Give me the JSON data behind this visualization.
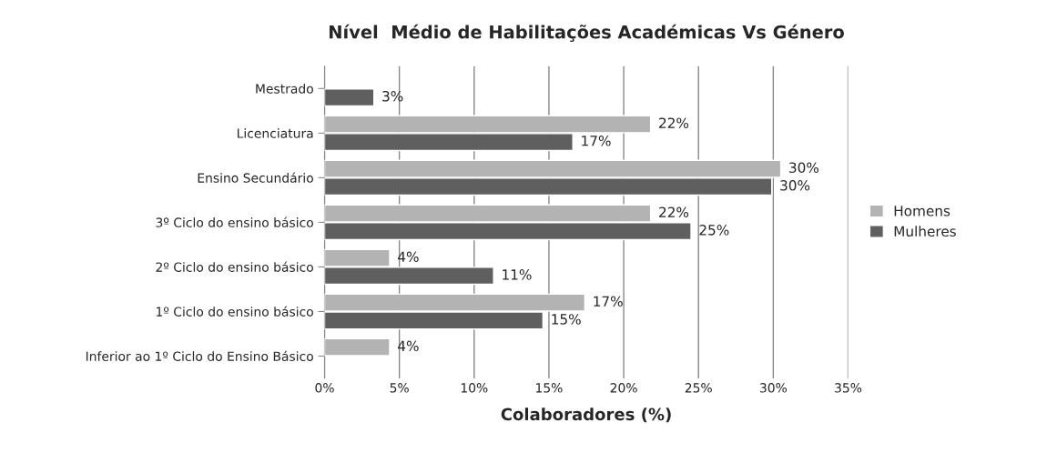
{
  "chart_data": {
    "type": "bar",
    "orientation": "horizontal",
    "title": "Nível  Médio de Habilitações Académicas Vs Género",
    "xlabel": "Colaboradores (%)",
    "categories": [
      "Mestrado",
      "Licenciatura",
      "Ensino Secundário",
      "3º Ciclo do ensino básico",
      "2º Ciclo do ensino básico",
      "1º Ciclo do ensino básico",
      "Inferior ao 1º Ciclo do Ensino Básico"
    ],
    "series": [
      {
        "name": "Homens",
        "color": "#b3b3b3",
        "values": [
          null,
          21.8,
          30.5,
          21.8,
          4.35,
          17.4,
          4.35
        ],
        "value_labels": [
          null,
          "22%",
          "30%",
          "22%",
          "4%",
          "17%",
          "4%"
        ]
      },
      {
        "name": "Mulheres",
        "color": "#5f5f5f",
        "values": [
          3.3,
          16.6,
          29.9,
          24.5,
          11.3,
          14.6,
          null
        ],
        "value_labels": [
          "3%",
          "17%",
          "30%",
          "25%",
          "11%",
          "15%",
          null
        ]
      }
    ],
    "xlim": [
      0,
      35
    ],
    "xticks": [
      {
        "value": 0,
        "label": "0%"
      },
      {
        "value": 5,
        "label": "5%"
      },
      {
        "value": 10,
        "label": "10%"
      },
      {
        "value": 15,
        "label": "15%"
      },
      {
        "value": 20,
        "label": "20%"
      },
      {
        "value": 25,
        "label": "25%"
      },
      {
        "value": 30,
        "label": "30%"
      },
      {
        "value": 35,
        "label": "35%"
      }
    ],
    "grid": "x",
    "legend": "right"
  }
}
